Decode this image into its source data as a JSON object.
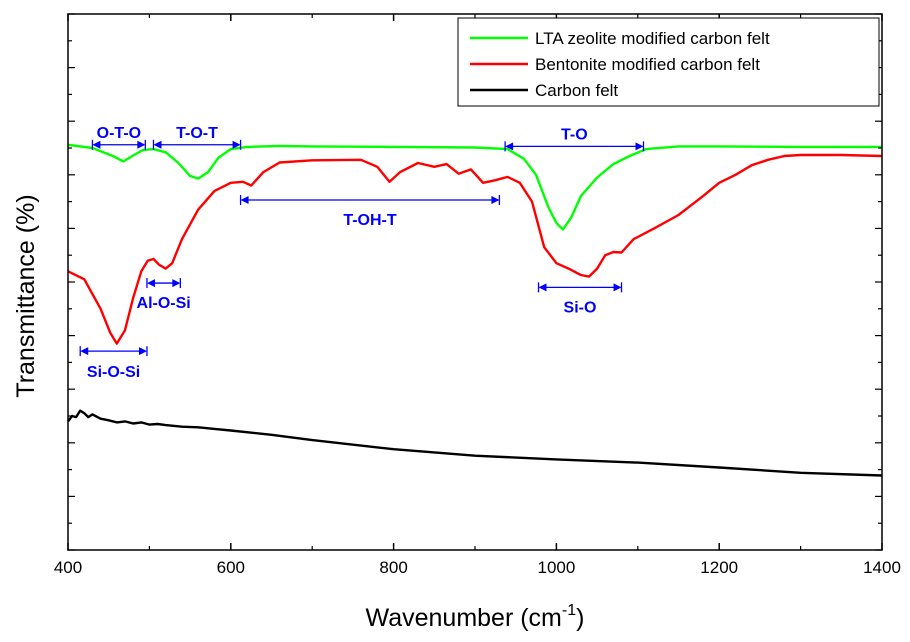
{
  "chart_data": {
    "type": "line",
    "xlabel": "Wavenumber (cm",
    "xlabel_sup": "-1",
    "xlabel_close": ")",
    "ylabel": "Transmittance (%)",
    "xlim": [
      400,
      1400
    ],
    "ylim": [
      0,
      100
    ],
    "x_ticks": [
      "400",
      "600",
      "800",
      "1000",
      "1200",
      "1400"
    ],
    "y_ticks_shown": false,
    "grid": false,
    "legend_position": "top-right",
    "series": [
      {
        "name": "LTA zeolite modified carbon felt",
        "color": "#00ff00",
        "points": [
          [
            400,
            75.6
          ],
          [
            430,
            75.0
          ],
          [
            455,
            73.5
          ],
          [
            468,
            72.5
          ],
          [
            480,
            73.6
          ],
          [
            492,
            74.6
          ],
          [
            505,
            74.8
          ],
          [
            520,
            74.2
          ],
          [
            535,
            72.3
          ],
          [
            550,
            69.8
          ],
          [
            560,
            69.3
          ],
          [
            572,
            70.5
          ],
          [
            585,
            73.2
          ],
          [
            600,
            74.8
          ],
          [
            620,
            75.2
          ],
          [
            660,
            75.4
          ],
          [
            700,
            75.3
          ],
          [
            800,
            75.2
          ],
          [
            900,
            75.1
          ],
          [
            940,
            74.8
          ],
          [
            960,
            73.0
          ],
          [
            975,
            70.0
          ],
          [
            990,
            64.0
          ],
          [
            1000,
            61.0
          ],
          [
            1008,
            59.8
          ],
          [
            1018,
            62.0
          ],
          [
            1030,
            66.0
          ],
          [
            1050,
            69.5
          ],
          [
            1070,
            72.0
          ],
          [
            1090,
            73.5
          ],
          [
            1110,
            74.8
          ],
          [
            1150,
            75.3
          ],
          [
            1200,
            75.3
          ],
          [
            1300,
            75.2
          ],
          [
            1400,
            75.2
          ]
        ]
      },
      {
        "name": "Bentonite modified carbon felt",
        "color": "#ff0000",
        "points": [
          [
            400,
            52.0
          ],
          [
            420,
            50.5
          ],
          [
            440,
            45.0
          ],
          [
            452,
            40.5
          ],
          [
            460,
            38.5
          ],
          [
            470,
            41.0
          ],
          [
            480,
            47.0
          ],
          [
            490,
            52.0
          ],
          [
            498,
            54.0
          ],
          [
            505,
            54.3
          ],
          [
            512,
            53.2
          ],
          [
            520,
            52.5
          ],
          [
            528,
            53.5
          ],
          [
            540,
            58.0
          ],
          [
            560,
            63.5
          ],
          [
            580,
            67.0
          ],
          [
            600,
            68.5
          ],
          [
            615,
            68.7
          ],
          [
            625,
            68.0
          ],
          [
            640,
            70.5
          ],
          [
            660,
            72.3
          ],
          [
            700,
            72.7
          ],
          [
            760,
            72.8
          ],
          [
            780,
            71.5
          ],
          [
            795,
            68.7
          ],
          [
            808,
            70.5
          ],
          [
            830,
            72.2
          ],
          [
            850,
            71.5
          ],
          [
            865,
            72.0
          ],
          [
            880,
            70.2
          ],
          [
            895,
            71.0
          ],
          [
            910,
            68.5
          ],
          [
            925,
            69.0
          ],
          [
            940,
            69.6
          ],
          [
            955,
            68.5
          ],
          [
            970,
            65.0
          ],
          [
            985,
            56.5
          ],
          [
            1000,
            53.5
          ],
          [
            1015,
            52.5
          ],
          [
            1030,
            51.3
          ],
          [
            1040,
            51.0
          ],
          [
            1050,
            52.5
          ],
          [
            1060,
            55.0
          ],
          [
            1070,
            55.6
          ],
          [
            1080,
            55.5
          ],
          [
            1095,
            58.0
          ],
          [
            1120,
            60.0
          ],
          [
            1150,
            62.5
          ],
          [
            1180,
            66.0
          ],
          [
            1200,
            68.5
          ],
          [
            1220,
            70.0
          ],
          [
            1240,
            71.8
          ],
          [
            1260,
            72.8
          ],
          [
            1280,
            73.5
          ],
          [
            1300,
            73.7
          ],
          [
            1350,
            73.7
          ],
          [
            1400,
            73.5
          ]
        ]
      },
      {
        "name": "Carbon felt",
        "color": "#000000",
        "points": [
          [
            400,
            24.0
          ],
          [
            405,
            25.0
          ],
          [
            410,
            24.8
          ],
          [
            415,
            26.0
          ],
          [
            420,
            25.5
          ],
          [
            425,
            24.8
          ],
          [
            430,
            25.3
          ],
          [
            440,
            24.5
          ],
          [
            450,
            24.2
          ],
          [
            460,
            23.8
          ],
          [
            470,
            24.0
          ],
          [
            480,
            23.6
          ],
          [
            490,
            23.8
          ],
          [
            500,
            23.4
          ],
          [
            510,
            23.5
          ],
          [
            520,
            23.3
          ],
          [
            540,
            23.0
          ],
          [
            560,
            22.9
          ],
          [
            580,
            22.6
          ],
          [
            600,
            22.3
          ],
          [
            650,
            21.5
          ],
          [
            700,
            20.5
          ],
          [
            800,
            18.8
          ],
          [
            900,
            17.6
          ],
          [
            1000,
            16.9
          ],
          [
            1100,
            16.3
          ],
          [
            1200,
            15.4
          ],
          [
            1300,
            14.4
          ],
          [
            1400,
            13.9
          ]
        ]
      }
    ],
    "annotations": [
      {
        "label": "O-T-O",
        "x_from": 430,
        "x_to": 495,
        "y": 75.6
      },
      {
        "label": "T-O-T",
        "x_from": 505,
        "x_to": 612,
        "y": 75.6
      },
      {
        "label": "T-O",
        "x_from": 937,
        "x_to": 1107,
        "y": 75.3
      },
      {
        "label": "T-OH-T",
        "x_from": 612,
        "x_to": 930,
        "y": 65.3
      },
      {
        "label": "Al-O-Si",
        "x_from": 497,
        "x_to": 538,
        "y": 49.8
      },
      {
        "label": "Si-O",
        "x_from": 978,
        "x_to": 1080,
        "y": 49.0
      },
      {
        "label": "Si-O-Si",
        "x_from": 415,
        "x_to": 497,
        "y": 37.1
      }
    ]
  }
}
